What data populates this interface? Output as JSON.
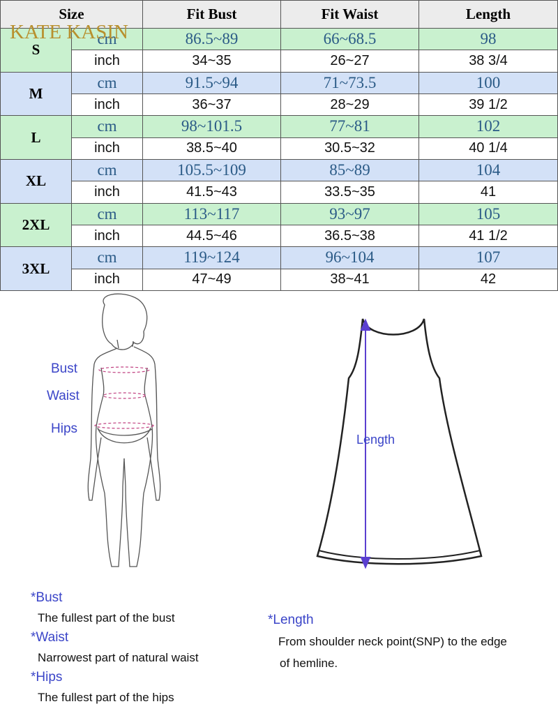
{
  "brand": "KATE KASIN",
  "table": {
    "header": [
      "Size",
      "Fit Bust",
      "Fit Waist",
      "Length"
    ],
    "rows": [
      {
        "size": "S",
        "cm": {
          "unit": "cm",
          "values": [
            "86.5~89",
            "66~68.5",
            "98"
          ]
        },
        "inch": {
          "unit": "inch",
          "values": [
            "34~35",
            "26~27",
            "38 3/4"
          ]
        }
      },
      {
        "size": "M",
        "cm": {
          "unit": "cm",
          "values": [
            "91.5~94",
            "71~73.5",
            "100"
          ]
        },
        "inch": {
          "unit": "inch",
          "values": [
            "36~37",
            "28~29",
            "39 1/2"
          ]
        }
      },
      {
        "size": "L",
        "cm": {
          "unit": "cm",
          "values": [
            "98~101.5",
            "77~81",
            "102"
          ]
        },
        "inch": {
          "unit": "inch",
          "values": [
            "38.5~40",
            "30.5~32",
            "40 1/4"
          ]
        }
      },
      {
        "size": "XL",
        "cm": {
          "unit": "cm",
          "values": [
            "105.5~109",
            "85~89",
            "104"
          ]
        },
        "inch": {
          "unit": "inch",
          "values": [
            "41.5~43",
            "33.5~35",
            "41"
          ]
        }
      },
      {
        "size": "2XL",
        "cm": {
          "unit": "cm",
          "values": [
            "113~117",
            "93~97",
            "105"
          ]
        },
        "inch": {
          "unit": "inch",
          "values": [
            "44.5~46",
            "36.5~38",
            "41 1/2"
          ]
        }
      },
      {
        "size": "3XL",
        "cm": {
          "unit": "cm",
          "values": [
            "119~124",
            "96~104",
            "107"
          ]
        },
        "inch": {
          "unit": "inch",
          "values": [
            "47~49",
            "38~41",
            "42"
          ]
        }
      }
    ]
  },
  "figure": {
    "labels": [
      "Bust",
      "Waist",
      "Hips"
    ]
  },
  "dress": {
    "label": "Length"
  },
  "notes": {
    "body": [
      {
        "term": "*Bust",
        "text": "The fullest part of the bust"
      },
      {
        "term": "*Waist",
        "text": "Narrowest part of natural waist"
      },
      {
        "term": "*Hips",
        "text": "The fullest part of the hips"
      }
    ],
    "length": {
      "term": "*Length",
      "text": [
        "From shoulder neck point(SNP) to the edge",
        "of hemline."
      ]
    }
  }
}
